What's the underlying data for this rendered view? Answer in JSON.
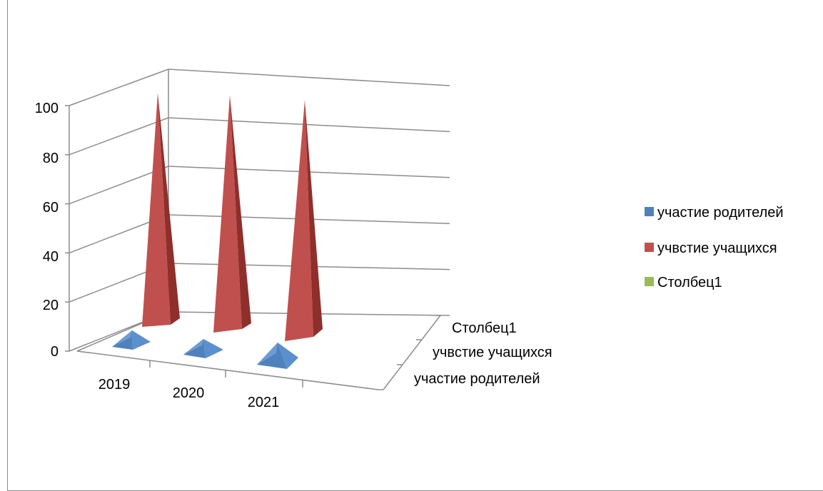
{
  "chart_data": {
    "type": "bar",
    "subtype": "3d-pyramid",
    "title": "",
    "categories": [
      "2019",
      "2020",
      "2021"
    ],
    "depth_categories": [
      "участие родителей",
      "учвстие учащихся",
      "Столбец1"
    ],
    "y_ticks": [
      "0",
      "20",
      "40",
      "60",
      "80",
      "100"
    ],
    "ylim": [
      0,
      100
    ],
    "grid": true,
    "legend_position": "right",
    "series": [
      {
        "name": "участие родителей",
        "values": [
          2,
          2,
          2
        ],
        "color": "#4F81BD"
      },
      {
        "name": "учвстие учащихся",
        "values": [
          100,
          100,
          100
        ],
        "color": "#C0504D"
      },
      {
        "name": "Столбец1",
        "values": [
          0,
          0,
          0
        ],
        "color": "#9BBB59"
      }
    ]
  }
}
